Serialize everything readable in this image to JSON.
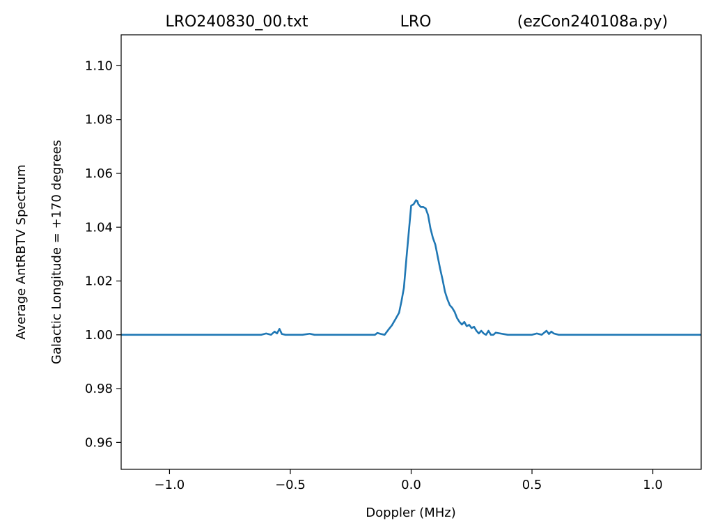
{
  "chart_data": {
    "type": "line",
    "title_parts": [
      "LRO240830_00.txt",
      "LRO",
      "(ezCon240108a.py)"
    ],
    "xlabel": "Doppler (MHz)",
    "ylabel_lines": [
      "Average AntRBTV Spectrum",
      "Galactic Longitude = +170 degrees"
    ],
    "xlim": [
      -1.2,
      1.2
    ],
    "ylim": [
      0.95,
      1.1115
    ],
    "xticks": [
      -1.0,
      -0.5,
      0.0,
      0.5,
      1.0
    ],
    "xtick_labels": [
      "−1.0",
      "−0.5",
      "0.0",
      "0.5",
      "1.0"
    ],
    "yticks": [
      0.96,
      0.98,
      1.0,
      1.02,
      1.04,
      1.06,
      1.08,
      1.1
    ],
    "ytick_labels": [
      "0.96",
      "0.98",
      "1.00",
      "1.02",
      "1.04",
      "1.06",
      "1.08",
      "1.10"
    ],
    "grid": false,
    "line_color": "#1f77b4",
    "series": [
      {
        "x": [
          -1.2,
          -0.62,
          -0.6,
          -0.58,
          -0.565,
          -0.555,
          -0.545,
          -0.535,
          -0.52,
          -0.45,
          -0.42,
          -0.4,
          -0.25,
          -0.2,
          -0.15,
          -0.14,
          -0.125,
          -0.11,
          -0.095,
          -0.08,
          -0.065,
          -0.05,
          -0.04,
          -0.03,
          -0.02,
          -0.01,
          0.0,
          0.01,
          0.02,
          0.025,
          0.03,
          0.04,
          0.05,
          0.06,
          0.07,
          0.08,
          0.09,
          0.1,
          0.11,
          0.12,
          0.13,
          0.14,
          0.15,
          0.16,
          0.17,
          0.18,
          0.19,
          0.2,
          0.21,
          0.22,
          0.23,
          0.24,
          0.25,
          0.26,
          0.27,
          0.28,
          0.29,
          0.3,
          0.31,
          0.32,
          0.33,
          0.34,
          0.35,
          0.4,
          0.45,
          0.5,
          0.52,
          0.54,
          0.56,
          0.57,
          0.58,
          0.59,
          0.61,
          1.2
        ],
        "y": [
          1.0,
          1.0,
          1.0005,
          1.0,
          1.0012,
          1.0005,
          1.0022,
          1.0003,
          1.0,
          1.0,
          1.0004,
          1.0,
          1.0,
          1.0,
          1.0,
          1.0007,
          1.0003,
          1.0,
          1.0018,
          1.0035,
          1.0058,
          1.0082,
          1.0125,
          1.0175,
          1.028,
          1.038,
          1.048,
          1.0485,
          1.05,
          1.0498,
          1.0485,
          1.0475,
          1.0475,
          1.047,
          1.0445,
          1.0395,
          1.036,
          1.0335,
          1.029,
          1.0245,
          1.0205,
          1.016,
          1.0132,
          1.011,
          1.01,
          1.0085,
          1.0062,
          1.0048,
          1.0038,
          1.0048,
          1.0032,
          1.0037,
          1.0025,
          1.003,
          1.0015,
          1.0005,
          1.0015,
          1.0005,
          1.0,
          1.0015,
          1.0,
          1.0,
          1.0008,
          1.0,
          1.0,
          1.0,
          1.0005,
          1.0,
          1.0015,
          1.0003,
          1.0012,
          1.0005,
          1.0,
          1.0
        ]
      }
    ]
  }
}
